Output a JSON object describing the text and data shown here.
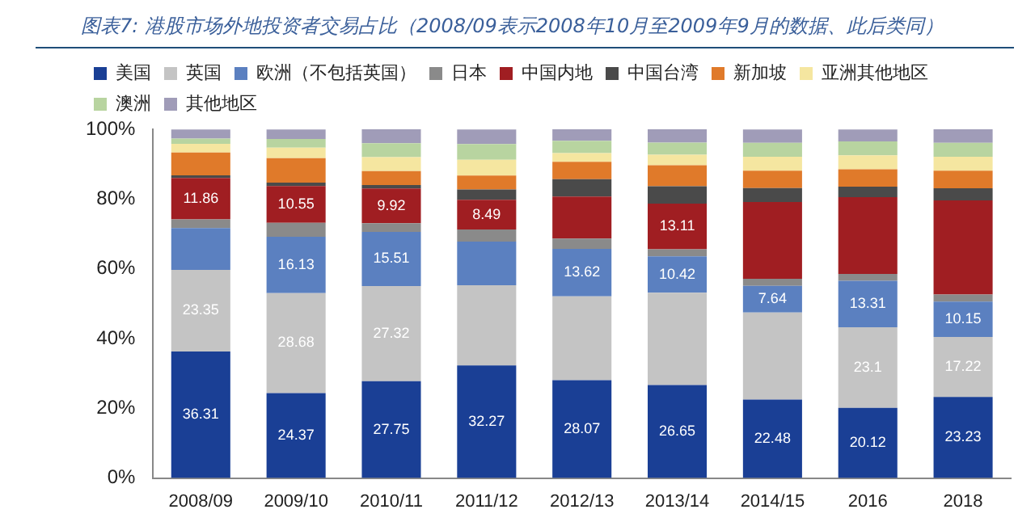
{
  "chart_data": {
    "type": "bar",
    "stacked": true,
    "title": "图表7: 港股市场外地投资者交易占比（2008/09表示2008年10月至2009年9月的数据、此后类同）",
    "categories": [
      "2008/09",
      "2009/10",
      "2010/11",
      "2011/12",
      "2012/13",
      "2013/14",
      "2014/15",
      "2016",
      "2018"
    ],
    "ylim": [
      0,
      100
    ],
    "yticks": [
      {
        "value": 0,
        "label": "0%"
      },
      {
        "value": 20,
        "label": "20%"
      },
      {
        "value": 40,
        "label": "40%"
      },
      {
        "value": 60,
        "label": "60%"
      },
      {
        "value": 80,
        "label": "80%"
      },
      {
        "value": 100,
        "label": "100%"
      }
    ],
    "grid": false,
    "legend": "top",
    "series": [
      {
        "name": "美国",
        "color": "#1a3f95",
        "values": [
          36.31,
          24.37,
          27.75,
          32.27,
          28.07,
          26.65,
          22.48,
          20.12,
          23.23
        ],
        "value_labels": [
          "36.31",
          "24.37",
          "27.75",
          "32.27",
          "28.07",
          "26.65",
          "22.48",
          "20.12",
          "23.23"
        ]
      },
      {
        "name": "英国",
        "color": "#c4c4c4",
        "values": [
          23.35,
          28.68,
          27.32,
          23.0,
          24.0,
          26.5,
          25.0,
          23.1,
          17.22
        ],
        "value_labels": [
          "23.35",
          "28.68",
          "27.32",
          null,
          null,
          null,
          null,
          "23.1",
          "17.22"
        ]
      },
      {
        "name": "欧洲（不包括英国）",
        "color": "#5b80c0",
        "values": [
          12.0,
          16.13,
          15.51,
          12.5,
          13.62,
          10.42,
          7.64,
          13.31,
          10.15
        ],
        "value_labels": [
          null,
          "16.13",
          "15.51",
          null,
          "13.62",
          "10.42",
          "7.64",
          "13.31",
          "10.15"
        ]
      },
      {
        "name": "日本",
        "color": "#8a8a8a",
        "values": [
          2.5,
          4.0,
          2.5,
          3.5,
          3.0,
          2.0,
          2.0,
          2.0,
          2.0
        ]
      },
      {
        "name": "中国内地",
        "color": "#a01e22",
        "values": [
          11.86,
          10.55,
          9.92,
          8.49,
          12.0,
          13.11,
          22.0,
          22.0,
          27.0
        ],
        "value_labels": [
          "11.86",
          "10.55",
          "9.92",
          "8.49",
          null,
          "13.11",
          null,
          null,
          null
        ]
      },
      {
        "name": "中国台湾",
        "color": "#4a4a4a",
        "values": [
          0.8,
          1.0,
          1.0,
          3.0,
          5.0,
          5.0,
          4.0,
          3.0,
          3.5
        ]
      },
      {
        "name": "新加坡",
        "color": "#e07a2a",
        "values": [
          6.5,
          7.0,
          4.0,
          4.0,
          5.0,
          6.0,
          5.0,
          5.0,
          5.0
        ]
      },
      {
        "name": "亚洲其他地区",
        "color": "#f5e6a0",
        "values": [
          2.5,
          3.0,
          4.0,
          4.5,
          2.5,
          3.0,
          4.0,
          4.0,
          4.0
        ]
      },
      {
        "name": "澳洲",
        "color": "#b8d4a0",
        "values": [
          1.5,
          2.5,
          4.0,
          4.5,
          3.5,
          3.5,
          4.0,
          4.0,
          4.0
        ]
      },
      {
        "name": "其他地区",
        "color": "#a09cb8",
        "values": [
          2.6,
          2.7,
          4.0,
          4.2,
          3.3,
          3.8,
          3.8,
          3.4,
          3.9
        ]
      }
    ]
  }
}
